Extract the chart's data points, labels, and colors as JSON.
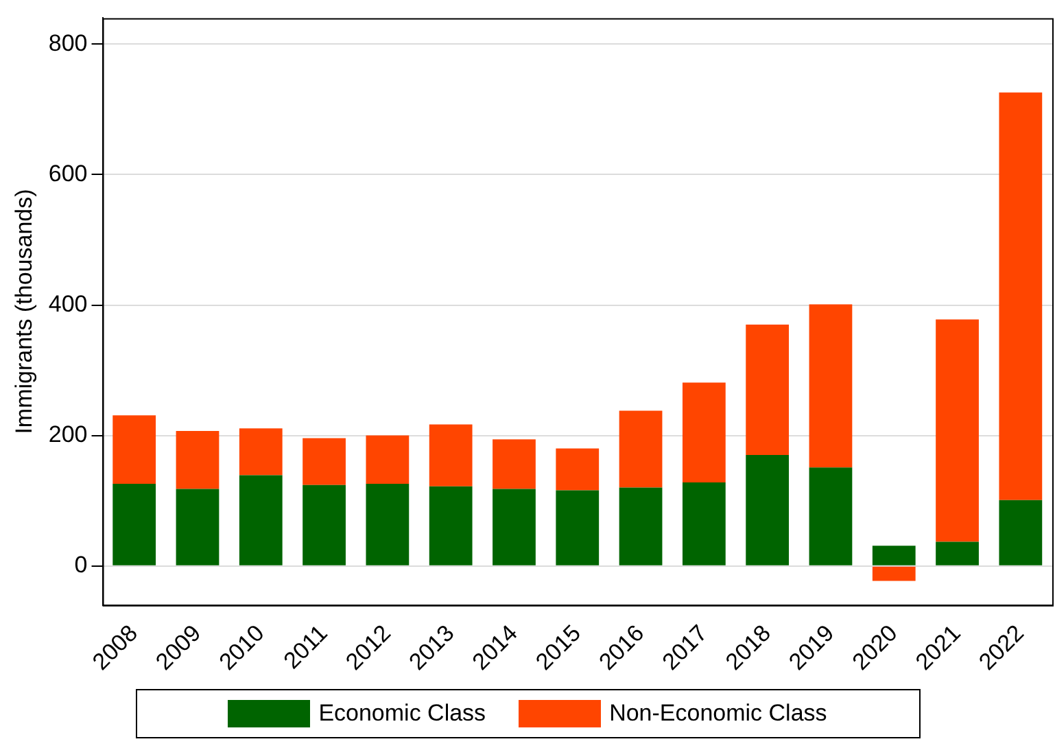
{
  "chart_data": {
    "type": "bar",
    "ylabel": "Immigrants (thousands)",
    "stacked": true,
    "categories": [
      "2008",
      "2009",
      "2010",
      "2011",
      "2012",
      "2013",
      "2014",
      "2015",
      "2016",
      "2017",
      "2018",
      "2019",
      "2020",
      "2021",
      "2022"
    ],
    "series": [
      {
        "name": "Economic Class",
        "color": "#006400",
        "values": [
          126,
          118,
          139,
          124,
          126,
          122,
          118,
          116,
          120,
          128,
          170,
          151,
          31,
          37,
          101
        ]
      },
      {
        "name": "Non-Economic Class",
        "color": "#ff4500",
        "values": [
          105,
          89,
          72,
          72,
          74,
          95,
          76,
          64,
          118,
          153,
          200,
          250,
          -23,
          341,
          625
        ]
      }
    ],
    "ylim": [
      -60,
      840
    ],
    "yticks": [
      0,
      200,
      400,
      600,
      800
    ],
    "grid": "y",
    "legend": "bottom"
  }
}
